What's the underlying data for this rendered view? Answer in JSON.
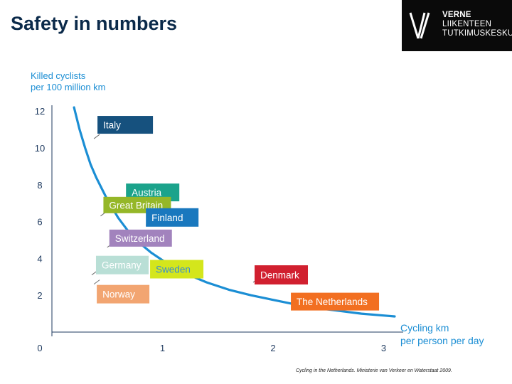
{
  "title": "Safety in numbers",
  "logo": {
    "lines": [
      "VERNE",
      "LIIKENTEEN",
      "TUTKIMUSKESKUS"
    ]
  },
  "source": "Cycling in the Netherlands. Ministerie van Verkeer en Waterstaat 2009.",
  "colors": {
    "curve": "#1b8ed4",
    "title": "#0b2a4a",
    "axis_label": "#1b8ed4"
  },
  "chart_data": {
    "type": "scatter",
    "ylabel": "Killed cyclists per 100 million km",
    "ylabel_lines": [
      "Killed cyclists",
      "per 100 million km"
    ],
    "xlabel": "Cycling km per person per day",
    "xlabel_lines": [
      "Cycling km",
      "per person per day"
    ],
    "xlim": [
      0,
      3.4
    ],
    "ylim": [
      0,
      12.2
    ],
    "x_ticks": [
      1,
      2,
      3
    ],
    "x_tick_labels": [
      "1",
      "2",
      "3"
    ],
    "y_ticks": [
      2,
      4,
      6,
      8,
      10,
      12
    ],
    "y_tick_labels": [
      "2",
      "4",
      "6",
      "8",
      "10",
      "12"
    ],
    "origin_label": "0",
    "fit_curve": [
      [
        0.2,
        12.2
      ],
      [
        0.25,
        11.0
      ],
      [
        0.3,
        10.0
      ],
      [
        0.35,
        9.1
      ],
      [
        0.4,
        8.4
      ],
      [
        0.5,
        7.2
      ],
      [
        0.6,
        6.2
      ],
      [
        0.7,
        5.4
      ],
      [
        0.8,
        4.8
      ],
      [
        0.9,
        4.3
      ],
      [
        1.0,
        3.9
      ],
      [
        1.1,
        3.5
      ],
      [
        1.2,
        3.2
      ],
      [
        1.4,
        2.7
      ],
      [
        1.6,
        2.3
      ],
      [
        1.8,
        2.0
      ],
      [
        2.0,
        1.75
      ],
      [
        2.2,
        1.5
      ],
      [
        2.4,
        1.3
      ],
      [
        2.6,
        1.15
      ],
      [
        2.8,
        1.0
      ],
      [
        3.0,
        0.9
      ],
      [
        3.1,
        0.85
      ]
    ],
    "series": [
      {
        "name": "Italy",
        "x": 0.38,
        "y": 10.5,
        "color": "#16517e",
        "text_color": "#ffffff"
      },
      {
        "name": "Austria",
        "x": 0.67,
        "y": 7.1,
        "color": "#1ba38b",
        "text_color": "#ffffff"
      },
      {
        "name": "Great Britain",
        "x": 0.44,
        "y": 6.3,
        "color": "#95b728",
        "text_color": "#ffffff"
      },
      {
        "name": "Finland",
        "x": 0.85,
        "y": 5.8,
        "color": "#1978be",
        "text_color": "#ffffff"
      },
      {
        "name": "Switzerland",
        "x": 0.5,
        "y": 4.6,
        "color": "#a283bd",
        "text_color": "#ffffff"
      },
      {
        "name": "Germany",
        "x": 0.36,
        "y": 3.1,
        "color": "#b9dfd6",
        "text_color": "#ffffff"
      },
      {
        "name": "Sweden",
        "x": 0.92,
        "y": 3.3,
        "color": "#d4e61c",
        "text_color": "#3a8fd0"
      },
      {
        "name": "Norway",
        "x": 0.38,
        "y": 2.6,
        "color": "#f2a571",
        "text_color": "#ffffff"
      },
      {
        "name": "Denmark",
        "x": 1.82,
        "y": 2.7,
        "color": "#d1202f",
        "text_color": "#ffffff"
      },
      {
        "name": "The Netherlands",
        "x": 2.92,
        "y": 1.25,
        "color": "#f26f21",
        "text_color": "#ffffff"
      }
    ]
  }
}
